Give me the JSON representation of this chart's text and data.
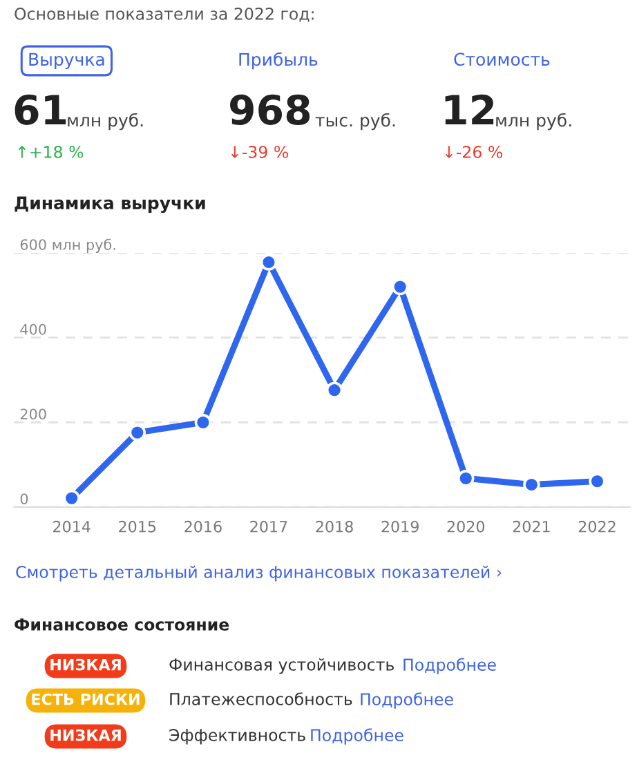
{
  "chart_data": {
    "type": "line",
    "title": "Динамика выручки",
    "categories": [
      "2014",
      "2015",
      "2016",
      "2017",
      "2018",
      "2019",
      "2020",
      "2021",
      "2022"
    ],
    "series": [
      {
        "color": "#2f66ee",
        "values": [
          21,
          176,
          200,
          578,
          276,
          520,
          68,
          53,
          61
        ]
      }
    ],
    "ylim": [
      0,
      600
    ],
    "yticks": [
      0,
      200,
      400,
      {
        "value": 600,
        "label": "600 млн руб."
      }
    ],
    "grid": "y",
    "marker": "circle",
    "line_style": "solid",
    "legend": false,
    "annotations": [
      "Основные показатели за 2022 год:",
      "Выручка",
      "Прибыль",
      "Стоимость",
      "61",
      "млн руб.",
      "968",
      "тыс. руб.",
      "12",
      "млн руб.",
      "↑+18 %",
      "↓-39 %",
      "↓-26 %",
      "Смотреть детальный анализ финансовых показателей ›",
      "Финансовое состояние",
      "НИЗКАЯ",
      "Финансовая устойчивость",
      "Подробнее",
      "ЕСТЬ РИСКИ",
      "Платежеспособность",
      "Подробнее",
      "НИЗКАЯ",
      "Эффективность",
      "Подробнее"
    ]
  }
}
